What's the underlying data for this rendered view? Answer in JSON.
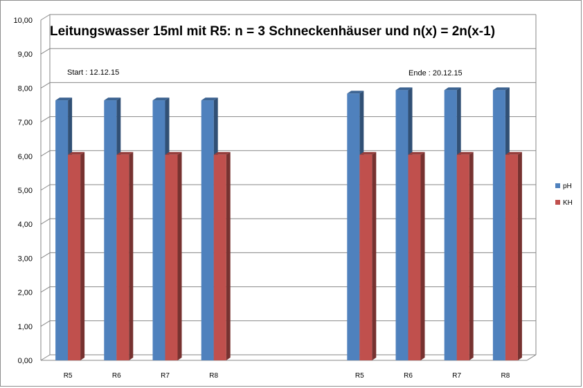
{
  "chart_data": {
    "type": "bar",
    "title": "Leitungswasser 15ml mit R5: n = 3 Schneckenhäuser  und n(x) = 2n(x-1)",
    "xlabel": "",
    "ylabel": "",
    "ylim": [
      0,
      10
    ],
    "ytick_step": 1,
    "ytick_labels": [
      "0,00",
      "1,00",
      "2,00",
      "3,00",
      "4,00",
      "5,00",
      "6,00",
      "7,00",
      "8,00",
      "9,00",
      "10,00"
    ],
    "categories": [
      "R5",
      "R6",
      "R7",
      "R8",
      "",
      "",
      "R5",
      "R6",
      "R7",
      "R8"
    ],
    "series": [
      {
        "name": "pH",
        "color": "#4F81BD",
        "values": [
          7.6,
          7.6,
          7.6,
          7.6,
          null,
          null,
          7.8,
          7.9,
          7.9,
          7.9
        ]
      },
      {
        "name": "KH",
        "color": "#C0504D",
        "values": [
          6.0,
          6.0,
          6.0,
          6.0,
          null,
          null,
          6.0,
          6.0,
          6.0,
          6.0
        ]
      }
    ],
    "annotations": [
      {
        "text": "Start : 12.12.15",
        "category_index": 0
      },
      {
        "text": "Ende : 20.12.15",
        "category_index": 8
      }
    ],
    "grid": true,
    "legend_position": "right",
    "style": "3d-clustered-column"
  }
}
